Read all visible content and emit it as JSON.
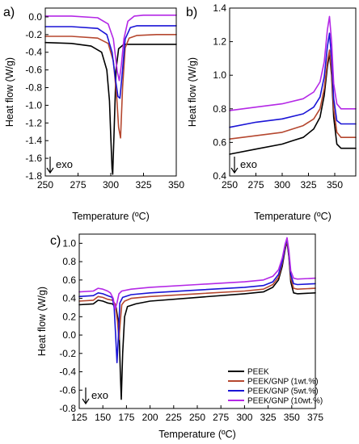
{
  "figure": {
    "legend": {
      "entries": [
        {
          "label": "PEEK",
          "color": "#000000"
        },
        {
          "label": "PEEK/GNP (1wt.%)",
          "color": "#b5472f"
        },
        {
          "label": "PEEK/GNP (5wt.%)",
          "color": "#1a14d6"
        },
        {
          "label": "PEEK/GNP (10wt.%)",
          "color": "#b428e6"
        }
      ],
      "placement": "bottom-right of panel c"
    }
  },
  "chart_data": [
    {
      "panel": "a)",
      "type": "line",
      "xlabel": "Temperature (ºC)",
      "ylabel": "Heat flow (W/g)",
      "annotation": "exo",
      "xlim": [
        250,
        350
      ],
      "ylim": [
        -1.8,
        0.1
      ],
      "xticks": [
        "250",
        "275",
        "300",
        "325",
        "350"
      ],
      "yticks": [
        "0.0",
        "-0.2",
        "-0.4",
        "-0.6",
        "-0.8",
        "-1.0",
        "-1.2",
        "-1.4",
        "-1.6",
        "-1.8"
      ],
      "xtick_values": [
        250,
        275,
        300,
        325,
        350
      ],
      "ytick_values": [
        0.0,
        -0.2,
        -0.4,
        -0.6,
        -0.8,
        -1.0,
        -1.2,
        -1.4,
        -1.6,
        -1.8
      ],
      "grid": false,
      "series": [
        {
          "name": "PEEK",
          "color": "#000000",
          "x": [
            250,
            270,
            285,
            293,
            297,
            299,
            300,
            301,
            301.5,
            302.5,
            304,
            306,
            310,
            320,
            335,
            350
          ],
          "y": [
            -0.29,
            -0.3,
            -0.33,
            -0.4,
            -0.6,
            -0.95,
            -1.35,
            -1.72,
            -1.78,
            -1.3,
            -0.6,
            -0.36,
            -0.31,
            -0.31,
            -0.31,
            -0.31
          ]
        },
        {
          "name": "PEEK/GNP (1wt.%)",
          "color": "#b5472f",
          "x": [
            250,
            270,
            290,
            298,
            302,
            304.5,
            306,
            307.5,
            309,
            311,
            314,
            320,
            335,
            350
          ],
          "y": [
            -0.22,
            -0.22,
            -0.24,
            -0.3,
            -0.5,
            -0.9,
            -1.25,
            -1.37,
            -0.8,
            -0.35,
            -0.24,
            -0.21,
            -0.2,
            -0.2
          ]
        },
        {
          "name": "PEEK/GNP (5wt.%)",
          "color": "#1a14d6",
          "x": [
            250,
            270,
            290,
            297,
            301,
            304,
            305.5,
            307,
            309,
            311,
            315,
            320,
            335,
            350
          ],
          "y": [
            -0.11,
            -0.11,
            -0.13,
            -0.2,
            -0.4,
            -0.75,
            -0.9,
            -0.92,
            -0.6,
            -0.25,
            -0.12,
            -0.1,
            -0.1,
            -0.1
          ]
        },
        {
          "name": "PEEK/GNP (10wt.%)",
          "color": "#b428e6",
          "x": [
            250,
            270,
            290,
            298,
            302,
            305,
            306.5,
            308,
            310,
            313,
            318,
            325,
            335,
            350
          ],
          "y": [
            0.01,
            0.01,
            -0.01,
            -0.08,
            -0.25,
            -0.62,
            -0.72,
            -0.55,
            -0.25,
            -0.05,
            0.01,
            0.02,
            0.02,
            0.02
          ]
        }
      ]
    },
    {
      "panel": "b)",
      "type": "line",
      "xlabel": "Temperature (ºC)",
      "ylabel": "Heat flow (W/g)",
      "annotation": "exo",
      "xlim": [
        250,
        370
      ],
      "ylim": [
        0.4,
        1.4
      ],
      "xticks": [
        "250",
        "275",
        "300",
        "325",
        "350"
      ],
      "yticks": [
        "1.4",
        "1.2",
        "1.0",
        "0.8",
        "0.6",
        "0.4"
      ],
      "xtick_values": [
        250,
        275,
        300,
        325,
        350
      ],
      "ytick_values": [
        1.4,
        1.2,
        1.0,
        0.8,
        0.6,
        0.4
      ],
      "grid": false,
      "series": [
        {
          "name": "PEEK",
          "color": "#000000",
          "x": [
            250,
            275,
            300,
            310,
            320,
            330,
            336,
            340,
            343,
            345,
            347,
            349,
            352,
            356,
            370
          ],
          "y": [
            0.53,
            0.56,
            0.59,
            0.61,
            0.63,
            0.68,
            0.75,
            0.88,
            1.05,
            1.13,
            1.0,
            0.75,
            0.59,
            0.565,
            0.565
          ]
        },
        {
          "name": "PEEK/GNP (1wt.%)",
          "color": "#b5472f",
          "x": [
            250,
            275,
            300,
            320,
            330,
            336,
            340,
            343,
            345,
            347,
            349,
            352,
            356,
            370
          ],
          "y": [
            0.62,
            0.64,
            0.66,
            0.7,
            0.74,
            0.8,
            0.92,
            1.08,
            1.15,
            1.02,
            0.8,
            0.66,
            0.63,
            0.63
          ]
        },
        {
          "name": "PEEK/GNP (5wt.%)",
          "color": "#1a14d6",
          "x": [
            250,
            275,
            300,
            320,
            330,
            336,
            340,
            343,
            345,
            347,
            349,
            352,
            356,
            370
          ],
          "y": [
            0.69,
            0.72,
            0.74,
            0.77,
            0.81,
            0.87,
            0.99,
            1.17,
            1.25,
            1.1,
            0.86,
            0.73,
            0.71,
            0.71
          ]
        },
        {
          "name": "PEEK/GNP (10wt.%)",
          "color": "#b428e6",
          "x": [
            250,
            275,
            300,
            320,
            330,
            336,
            340,
            343,
            345,
            347,
            349,
            352,
            356,
            370
          ],
          "y": [
            0.79,
            0.81,
            0.83,
            0.86,
            0.9,
            0.96,
            1.08,
            1.27,
            1.35,
            1.2,
            0.95,
            0.83,
            0.8,
            0.8
          ]
        }
      ]
    },
    {
      "panel": "c)",
      "type": "line",
      "xlabel": "Temperature (ºC)",
      "ylabel": "Heat flow (W/g)",
      "annotation": "exo",
      "xlim": [
        125,
        375
      ],
      "ylim": [
        -0.8,
        1.1
      ],
      "xticks": [
        "125",
        "150",
        "175",
        "200",
        "225",
        "250",
        "275",
        "300",
        "325",
        "350",
        "375"
      ],
      "yticks": [
        "1.0",
        "0.8",
        "0.6",
        "0.4",
        "0.2",
        "0.0",
        "-0.2",
        "-0.4",
        "-0.6",
        "-0.8"
      ],
      "xtick_values": [
        125,
        150,
        175,
        200,
        225,
        250,
        275,
        300,
        325,
        350,
        375
      ],
      "ytick_values": [
        1.0,
        0.8,
        0.6,
        0.4,
        0.2,
        0.0,
        -0.2,
        -0.4,
        -0.6,
        -0.8
      ],
      "grid": false,
      "series": [
        {
          "name": "PEEK",
          "color": "#000000",
          "x": [
            125,
            140,
            145,
            150,
            155,
            160,
            164,
            167,
            168.5,
            169.5,
            171,
            173,
            176,
            185,
            200,
            250,
            300,
            320,
            330,
            336,
            340,
            343,
            345,
            347,
            349,
            352,
            356,
            375
          ],
          "y": [
            0.33,
            0.34,
            0.38,
            0.37,
            0.35,
            0.34,
            0.3,
            0.1,
            -0.4,
            -0.7,
            -0.2,
            0.2,
            0.31,
            0.34,
            0.37,
            0.41,
            0.45,
            0.47,
            0.52,
            0.6,
            0.75,
            0.93,
            1.02,
            0.85,
            0.58,
            0.46,
            0.45,
            0.46
          ]
        },
        {
          "name": "PEEK/GNP (1wt.%)",
          "color": "#b5472f",
          "x": [
            125,
            140,
            145,
            150,
            155,
            160,
            163,
            165.5,
            167,
            168.5,
            170,
            173,
            180,
            200,
            250,
            300,
            320,
            330,
            336,
            340,
            343,
            345,
            347,
            349,
            352,
            356,
            375
          ],
          "y": [
            0.37,
            0.38,
            0.42,
            0.41,
            0.39,
            0.38,
            0.34,
            0.15,
            -0.05,
            0.15,
            0.33,
            0.37,
            0.4,
            0.42,
            0.45,
            0.48,
            0.5,
            0.55,
            0.63,
            0.78,
            0.95,
            1.03,
            0.87,
            0.62,
            0.51,
            0.5,
            0.51
          ]
        },
        {
          "name": "PEEK/GNP (5wt.%)",
          "color": "#1a14d6",
          "x": [
            125,
            140,
            145,
            150,
            155,
            160,
            162,
            163.5,
            165,
            166.5,
            168,
            171,
            180,
            200,
            250,
            300,
            320,
            330,
            336,
            340,
            343,
            345,
            347,
            349,
            352,
            356,
            375
          ],
          "y": [
            0.42,
            0.43,
            0.46,
            0.45,
            0.43,
            0.41,
            0.3,
            0.0,
            -0.3,
            0.0,
            0.35,
            0.41,
            0.44,
            0.46,
            0.49,
            0.52,
            0.54,
            0.58,
            0.66,
            0.8,
            0.97,
            1.05,
            0.89,
            0.66,
            0.56,
            0.55,
            0.56
          ]
        },
        {
          "name": "PEEK/GNP (10wt.%)",
          "color": "#b428e6",
          "x": [
            125,
            140,
            145,
            150,
            155,
            158,
            161,
            163,
            165,
            167,
            170,
            180,
            200,
            250,
            300,
            320,
            330,
            336,
            340,
            343,
            345,
            347,
            349,
            352,
            356,
            375
          ],
          "y": [
            0.47,
            0.48,
            0.51,
            0.5,
            0.48,
            0.46,
            0.4,
            0.28,
            0.35,
            0.45,
            0.48,
            0.5,
            0.52,
            0.55,
            0.58,
            0.6,
            0.64,
            0.71,
            0.84,
            0.99,
            1.06,
            0.92,
            0.7,
            0.62,
            0.61,
            0.62
          ]
        }
      ]
    }
  ]
}
